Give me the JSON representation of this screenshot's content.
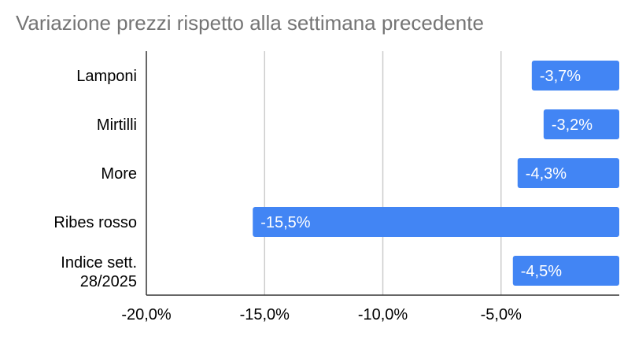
{
  "chart_data": {
    "type": "bar",
    "orientation": "horizontal",
    "title": "Variazione prezzi rispetto alla settimana precedente",
    "categories": [
      "Lamponi",
      "Mirtilli",
      "More",
      "Ribes rosso",
      "Indice sett. 28/2025"
    ],
    "values": [
      -3.7,
      -3.2,
      -4.3,
      -15.5,
      -4.5
    ],
    "data_labels": [
      "-3,7%",
      "-3,2%",
      "-4,3%",
      "-15,5%",
      "-4,5%"
    ],
    "xlim": [
      -20,
      0
    ],
    "xticks": [
      -20,
      -15,
      -10,
      -5
    ],
    "xtick_labels": [
      "-20,0%",
      "-15,0%",
      "-10,0%",
      "-5,0%"
    ],
    "xlabel": "",
    "ylabel": "",
    "grid": "vertical",
    "bar_color": "#4285f4",
    "gridline_color": "#cccccc",
    "title_color": "#757575"
  }
}
